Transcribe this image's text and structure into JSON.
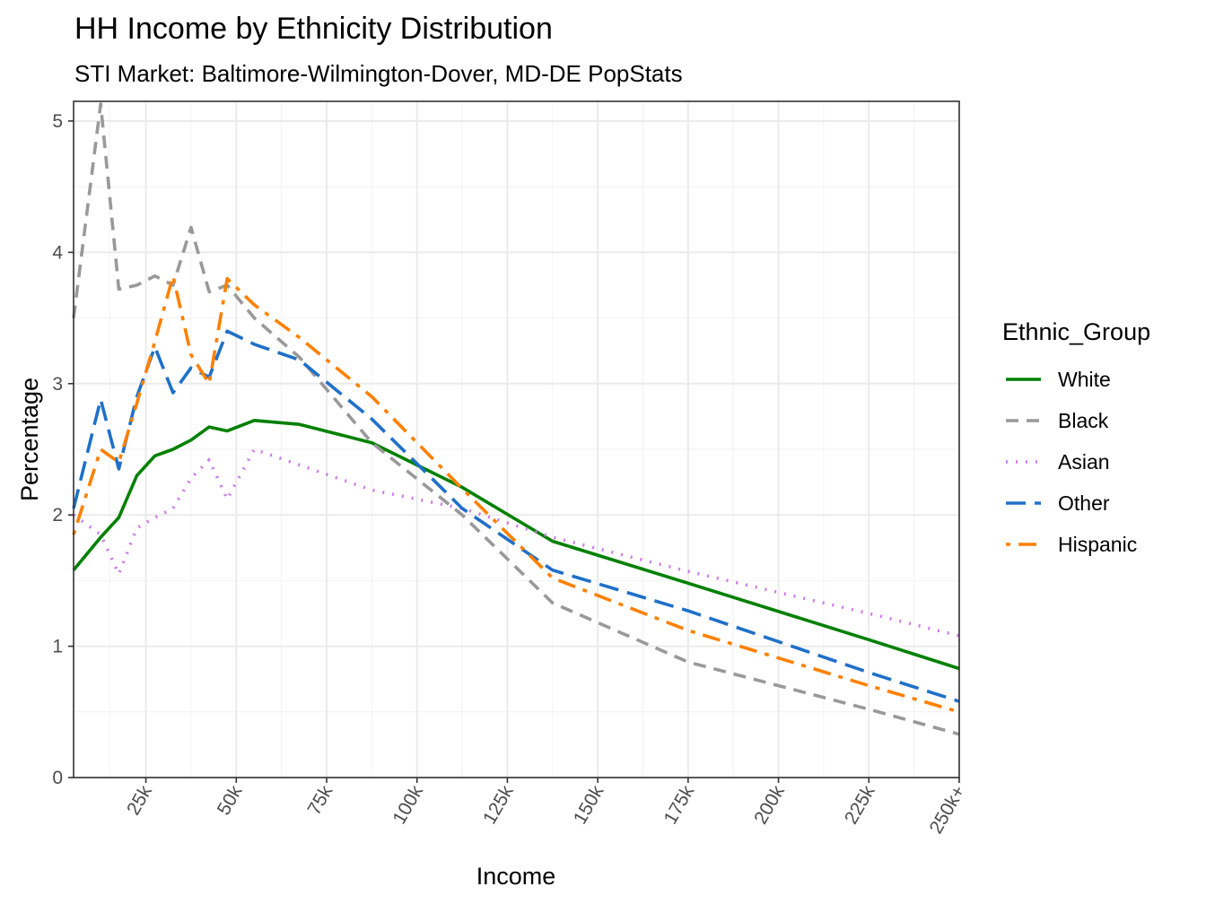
{
  "chart_data": {
    "type": "line",
    "title": "HH Income by Ethnicity Distribution",
    "subtitle": "STI Market: Baltimore-Wilmington-Dover, MD-DE PopStats",
    "xlabel": "Income",
    "ylabel": "Percentage",
    "xlim": [
      5,
      250
    ],
    "ylim": [
      0,
      5.15
    ],
    "x_ticks": [
      25,
      50,
      75,
      100,
      125,
      150,
      175,
      200,
      225,
      250
    ],
    "x_tick_labels": [
      "25k",
      "50k",
      "75k",
      "100k",
      "125k",
      "150k",
      "175k",
      "200k",
      "225k",
      "250k+"
    ],
    "y_ticks": [
      0,
      1,
      2,
      3,
      4,
      5
    ],
    "y_tick_labels": [
      "0",
      "1",
      "2",
      "3",
      "4",
      "5"
    ],
    "grid": true,
    "legend_title": "Ethnic_Group",
    "legend_position": "right",
    "x": [
      5,
      12.5,
      17.5,
      22.5,
      27.5,
      32.5,
      37.5,
      42.5,
      47.5,
      55,
      67.5,
      87.5,
      112.5,
      137.5,
      175,
      225,
      250
    ],
    "series": [
      {
        "name": "White",
        "color": "#008000",
        "dash": "solid",
        "values": [
          1.58,
          1.83,
          1.98,
          2.3,
          2.45,
          2.5,
          2.57,
          2.67,
          2.64,
          2.72,
          2.69,
          2.55,
          2.21,
          1.8,
          1.48,
          1.05,
          0.83
        ]
      },
      {
        "name": "Black",
        "color": "#999999",
        "dash": "dashed",
        "values": [
          3.5,
          5.13,
          3.72,
          3.75,
          3.82,
          3.75,
          4.19,
          3.7,
          3.75,
          3.5,
          3.2,
          2.55,
          2.0,
          1.33,
          0.88,
          0.52,
          0.33
        ]
      },
      {
        "name": "Asian",
        "color": "#CC79E8",
        "dash": "dotted",
        "values": [
          2.0,
          1.85,
          1.55,
          1.9,
          1.98,
          2.05,
          2.28,
          2.42,
          2.12,
          2.5,
          2.38,
          2.19,
          2.05,
          1.83,
          1.57,
          1.25,
          1.08
        ]
      },
      {
        "name": "Other",
        "color": "#1F70C8",
        "dash": "longdash",
        "values": [
          2.05,
          2.88,
          2.35,
          2.9,
          3.28,
          2.93,
          3.12,
          3.05,
          3.4,
          3.3,
          3.18,
          2.73,
          2.05,
          1.58,
          1.27,
          0.8,
          0.58
        ]
      },
      {
        "name": "Hispanic",
        "color": "#FF8000",
        "dash": "dotdash",
        "values": [
          1.85,
          2.5,
          2.4,
          2.85,
          3.32,
          3.82,
          3.22,
          3.0,
          3.8,
          3.6,
          3.35,
          2.9,
          2.2,
          1.52,
          1.12,
          0.7,
          0.5
        ]
      }
    ]
  }
}
